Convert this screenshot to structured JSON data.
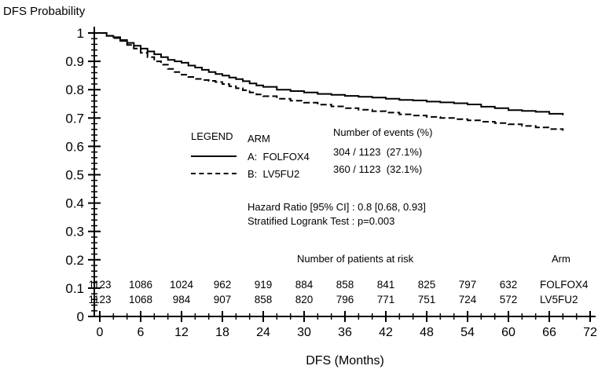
{
  "title": {
    "y_axis": "DFS Probability",
    "x_axis": "DFS (Months)"
  },
  "legend": {
    "header": "LEGEND",
    "arm_header": "ARM",
    "events_header": "Number of events (%)",
    "rows": [
      {
        "arm": "A:  FOLFOX4",
        "events": "304 / 1123  (27.1%)",
        "style": "solid"
      },
      {
        "arm": "B:  LV5FU2",
        "events": "360 / 1123  (32.1%)",
        "style": "dashed"
      }
    ]
  },
  "stats": {
    "hazard_ratio": "Hazard Ratio [95% CI] : 0.8 [0.68, 0.93]",
    "logrank": "Stratified Logrank Test : p=0.003"
  },
  "risk_table": {
    "title": "Number of patients at risk",
    "arm_header": "Arm",
    "months": [
      0,
      6,
      12,
      18,
      24,
      30,
      36,
      42,
      48,
      54,
      60
    ],
    "rows": [
      {
        "arm": "FOLFOX4",
        "counts": [
          1123,
          1086,
          1024,
          962,
          919,
          884,
          858,
          841,
          825,
          797,
          632
        ]
      },
      {
        "arm": "LV5FU2",
        "counts": [
          1123,
          1068,
          984,
          907,
          858,
          820,
          796,
          771,
          751,
          724,
          572
        ]
      }
    ]
  },
  "chart_data": {
    "type": "line",
    "subtype": "kaplan-meier-step",
    "title": "",
    "xlabel": "DFS (Months)",
    "ylabel": "DFS Probability",
    "xlim": [
      0,
      72
    ],
    "ylim": [
      0,
      1
    ],
    "grid": false,
    "legend_position": "inside upper-center",
    "x_major_ticks": [
      0,
      6,
      12,
      18,
      24,
      30,
      36,
      42,
      48,
      54,
      60,
      66,
      72
    ],
    "x_tick_labels": [
      "0",
      "6",
      "12",
      "18",
      "24",
      "30",
      "36",
      "42",
      "48",
      "54",
      "60",
      "66",
      "72"
    ],
    "y_major_ticks": [
      0,
      0.1,
      0.2,
      0.3,
      0.4,
      0.5,
      0.6,
      0.7,
      0.8,
      0.9,
      1
    ],
    "y_tick_labels": [
      "0",
      "0.1",
      "0.2",
      "0.3",
      "0.4",
      "0.5",
      "0.6",
      "0.7",
      "0.8",
      "0.9",
      "1"
    ],
    "series": [
      {
        "name": "A: FOLFOX4",
        "line": "solid",
        "x": [
          0,
          1,
          2,
          3,
          4,
          5,
          6,
          7,
          8,
          9,
          10,
          11,
          12,
          13,
          14,
          15,
          16,
          17,
          18,
          19,
          20,
          21,
          22,
          23,
          24,
          26,
          28,
          30,
          32,
          34,
          36,
          38,
          40,
          42,
          44,
          46,
          48,
          50,
          52,
          54,
          56,
          58,
          60,
          62,
          64,
          66,
          68
        ],
        "y": [
          1.0,
          0.99,
          0.985,
          0.975,
          0.965,
          0.955,
          0.945,
          0.935,
          0.925,
          0.915,
          0.905,
          0.9,
          0.895,
          0.885,
          0.878,
          0.87,
          0.862,
          0.855,
          0.85,
          0.843,
          0.837,
          0.83,
          0.822,
          0.815,
          0.81,
          0.8,
          0.795,
          0.79,
          0.785,
          0.782,
          0.778,
          0.775,
          0.772,
          0.768,
          0.764,
          0.762,
          0.758,
          0.755,
          0.752,
          0.748,
          0.74,
          0.735,
          0.728,
          0.725,
          0.722,
          0.715,
          0.71
        ]
      },
      {
        "name": "B: LV5FU2",
        "line": "dashed",
        "x": [
          0,
          1,
          2,
          3,
          4,
          5,
          6,
          7,
          8,
          9,
          10,
          11,
          12,
          13,
          14,
          15,
          16,
          17,
          18,
          19,
          20,
          21,
          22,
          23,
          24,
          26,
          28,
          30,
          32,
          34,
          36,
          38,
          40,
          42,
          44,
          46,
          48,
          50,
          52,
          54,
          56,
          58,
          60,
          62,
          64,
          66,
          68
        ],
        "y": [
          1.0,
          0.99,
          0.982,
          0.972,
          0.958,
          0.945,
          0.93,
          0.915,
          0.9,
          0.888,
          0.873,
          0.862,
          0.853,
          0.845,
          0.838,
          0.834,
          0.831,
          0.827,
          0.82,
          0.812,
          0.805,
          0.798,
          0.79,
          0.783,
          0.777,
          0.768,
          0.761,
          0.754,
          0.747,
          0.741,
          0.735,
          0.729,
          0.724,
          0.719,
          0.713,
          0.709,
          0.704,
          0.7,
          0.696,
          0.692,
          0.687,
          0.682,
          0.678,
          0.672,
          0.667,
          0.661,
          0.655
        ]
      }
    ]
  }
}
